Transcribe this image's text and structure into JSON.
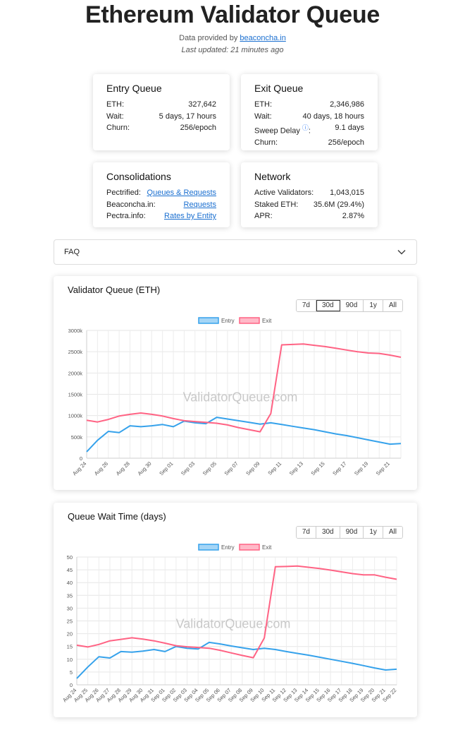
{
  "header": {
    "title": "Ethereum Validator Queue",
    "provided_prefix": "Data provided by ",
    "provided_link": "beaconcha.in",
    "last_updated": "Last updated: 21 minutes ago"
  },
  "entry_queue": {
    "title": "Entry Queue",
    "rows": [
      {
        "label": "ETH:",
        "value": "327,642"
      },
      {
        "label": "Wait:",
        "value": "5 days, 17 hours"
      },
      {
        "label": "Churn:",
        "value": "256/epoch"
      }
    ]
  },
  "exit_queue": {
    "title": "Exit Queue",
    "rows": [
      {
        "label": "ETH:",
        "value": "2,346,986"
      },
      {
        "label": "Wait:",
        "value": "40 days, 18 hours"
      },
      {
        "label": "Sweep Delay",
        "value": "9.1 days"
      },
      {
        "label": "Churn:",
        "value": "256/epoch"
      }
    ],
    "sweep_colon": ":"
  },
  "consolidations": {
    "title": "Consolidations",
    "rows": [
      {
        "label": "Pectrified:",
        "value": "Queues & Requests"
      },
      {
        "label": "Beaconcha.in:",
        "value": "Requests"
      },
      {
        "label": "Pectra.info:",
        "value": "Rates by Entity"
      }
    ]
  },
  "network": {
    "title": "Network",
    "rows": [
      {
        "label": "Active Validators:",
        "value": "1,043,015"
      },
      {
        "label": "Staked ETH:",
        "value": "35.6M (29.4%)"
      },
      {
        "label": "APR:",
        "value": "2.87%"
      }
    ]
  },
  "faq": {
    "label": "FAQ"
  },
  "colors": {
    "entry": "#36a2eb",
    "exit": "#ff6384",
    "link": "#1a6fd0"
  },
  "icons": {
    "faq_toggle": "chevron-down-icon",
    "sweep_info": "info-icon"
  },
  "watermark": "ValidatorQueue.com",
  "range_buttons": [
    "7d",
    "30d",
    "90d",
    "1y",
    "All"
  ],
  "chart_data": [
    {
      "type": "line",
      "title": "Validator Queue (ETH)",
      "active_range": "30d",
      "legend": "top",
      "grid": true,
      "ylim": [
        0,
        3000000
      ],
      "y_ticks": [
        0,
        500000,
        1000000,
        1500000,
        2000000,
        2500000,
        3000000
      ],
      "y_tick_labels": [
        "0",
        "500k",
        "1000k",
        "1500k",
        "2000k",
        "2500k",
        "3000k"
      ],
      "x": [
        "Aug 24",
        "Aug 25",
        "Aug 26",
        "Aug 27",
        "Aug 28",
        "Aug 29",
        "Aug 30",
        "Aug 31",
        "Sep 01",
        "Sep 02",
        "Sep 03",
        "Sep 04",
        "Sep 05",
        "Sep 06",
        "Sep 07",
        "Sep 08",
        "Sep 09",
        "Sep 10",
        "Sep 11",
        "Sep 12",
        "Sep 13",
        "Sep 14",
        "Sep 15",
        "Sep 16",
        "Sep 17",
        "Sep 18",
        "Sep 19",
        "Sep 20",
        "Sep 21",
        "Sep 22"
      ],
      "x_tick_labels": [
        "Aug 24",
        "",
        "Aug 26",
        "",
        "Aug 28",
        "",
        "Aug 30",
        "",
        "Sep 01",
        "",
        "Sep 03",
        "",
        "Sep 05",
        "",
        "Sep 07",
        "",
        "Sep 09",
        "",
        "Sep 11",
        "",
        "Sep 13",
        "",
        "Sep 15",
        "",
        "Sep 17",
        "",
        "Sep 19",
        "",
        "Sep 21",
        ""
      ],
      "series": [
        {
          "name": "Entry",
          "values": [
            150000,
            420000,
            630000,
            600000,
            760000,
            740000,
            760000,
            790000,
            740000,
            870000,
            830000,
            810000,
            960000,
            920000,
            880000,
            840000,
            800000,
            830000,
            790000,
            750000,
            710000,
            670000,
            620000,
            570000,
            530000,
            480000,
            430000,
            380000,
            330000,
            345000
          ]
        },
        {
          "name": "Exit",
          "values": [
            890000,
            850000,
            910000,
            990000,
            1030000,
            1060000,
            1030000,
            990000,
            930000,
            880000,
            860000,
            840000,
            820000,
            780000,
            720000,
            670000,
            620000,
            1050000,
            2660000,
            2670000,
            2680000,
            2650000,
            2620000,
            2580000,
            2540000,
            2500000,
            2470000,
            2460000,
            2420000,
            2370000
          ]
        }
      ]
    },
    {
      "type": "line",
      "title": "Queue Wait Time (days)",
      "active_range": "",
      "legend": "top",
      "grid": true,
      "ylim": [
        0,
        50
      ],
      "y_ticks": [
        0,
        5,
        10,
        15,
        20,
        25,
        30,
        35,
        40,
        45,
        50
      ],
      "y_tick_labels": [
        "0",
        "5",
        "10",
        "15",
        "20",
        "25",
        "30",
        "35",
        "40",
        "45",
        "50"
      ],
      "x": [
        "Aug 24",
        "Aug 25",
        "Aug 26",
        "Aug 27",
        "Aug 28",
        "Aug 29",
        "Aug 30",
        "Aug 31",
        "Sep 01",
        "Sep 02",
        "Sep 03",
        "Sep 04",
        "Sep 05",
        "Sep 06",
        "Sep 07",
        "Sep 08",
        "Sep 09",
        "Sep 10",
        "Sep 11",
        "Sep 12",
        "Sep 13",
        "Sep 14",
        "Sep 15",
        "Sep 16",
        "Sep 17",
        "Sep 18",
        "Sep 19",
        "Sep 20",
        "Sep 21",
        "Sep 22"
      ],
      "x_tick_labels": [
        "Aug 24",
        "Aug 25",
        "Aug 26",
        "Aug 27",
        "Aug 28",
        "Aug 29",
        "Aug 30",
        "Aug 31",
        "Sep 01",
        "Sep 02",
        "Sep 03",
        "Sep 04",
        "Sep 05",
        "Sep 06",
        "Sep 07",
        "Sep 08",
        "Sep 09",
        "Sep 10",
        "Sep 11",
        "Sep 12",
        "Sep 13",
        "Sep 14",
        "Sep 15",
        "Sep 16",
        "Sep 17",
        "Sep 18",
        "Sep 19",
        "Sep 20",
        "Sep 21",
        "Sep 22"
      ],
      "series": [
        {
          "name": "Entry",
          "values": [
            2.5,
            7,
            11,
            10.5,
            13,
            12.8,
            13.2,
            13.8,
            13,
            15,
            14.3,
            14,
            16.6,
            16,
            15.2,
            14.5,
            13.8,
            14.3,
            13.8,
            13,
            12.3,
            11.6,
            10.8,
            10,
            9.2,
            8.4,
            7.5,
            6.6,
            5.8,
            6.1
          ]
        },
        {
          "name": "Exit",
          "values": [
            15.5,
            14.8,
            15.8,
            17.2,
            17.8,
            18.4,
            17.9,
            17.2,
            16.3,
            15.3,
            14.9,
            14.6,
            14.3,
            13.5,
            12.5,
            11.5,
            10.6,
            18.3,
            46.2,
            46.3,
            46.5,
            46,
            45.5,
            44.9,
            44.2,
            43.5,
            43,
            43,
            42.1,
            41.3
          ]
        }
      ]
    }
  ]
}
